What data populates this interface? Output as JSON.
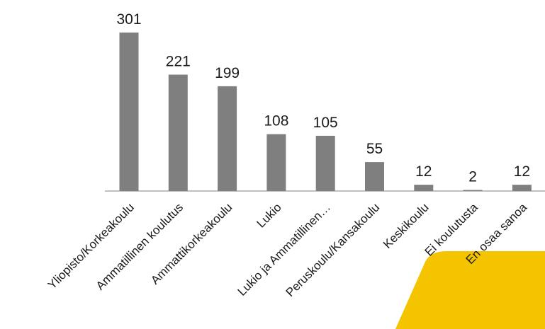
{
  "chart_data": {
    "type": "bar",
    "categories": [
      "Yliopisto/Korkeakoulu",
      "Ammatillinen koulutus",
      "Ammattikorkeakoulu",
      "Lukio",
      "Lukio ja Ammatillinen…",
      "Peruskoulu/Kansakoulu",
      "Keskikoulu",
      "Ei koulutusta",
      "En osaa sanoa"
    ],
    "values": [
      301,
      221,
      199,
      108,
      105,
      55,
      12,
      2,
      12
    ],
    "ylim": [
      0,
      301
    ],
    "grid": false,
    "legend": "none",
    "bar_color": "#7f7f7f",
    "axis_color": "#808080",
    "title": "",
    "xlabel": "",
    "ylabel": ""
  },
  "decoration": {
    "corner_shape_color": "#f5c400"
  }
}
